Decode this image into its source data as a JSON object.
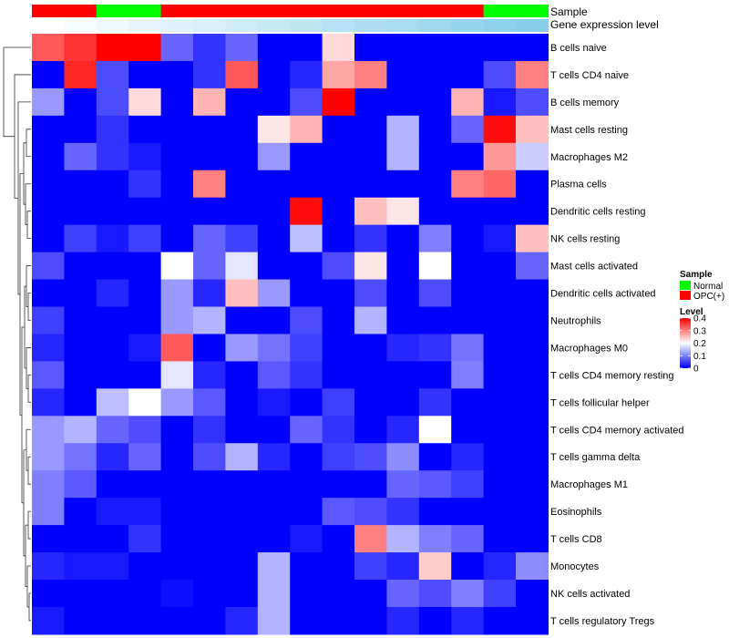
{
  "chart_data": {
    "type": "heatmap",
    "annotation_labels": [
      "Sample",
      "Gene expression level"
    ],
    "sample_groups": [
      "OPC(+)",
      "OPC(+)",
      "Normal",
      "Normal",
      "OPC(+)",
      "OPC(+)",
      "OPC(+)",
      "OPC(+)",
      "OPC(+)",
      "OPC(+)",
      "OPC(+)",
      "OPC(+)",
      "OPC(+)",
      "OPC(+)",
      "Normal",
      "Normal"
    ],
    "expression_levels": [
      0,
      1,
      2,
      3,
      4,
      5,
      6,
      7,
      8,
      9,
      10,
      11,
      12,
      13,
      14,
      15
    ],
    "rows": [
      "B cells naive",
      "T cells CD4 naive",
      "B cells memory",
      "Mast cells resting",
      "Macrophages M2",
      "Plasma cells",
      "Dendritic cells resting",
      "NK cells resting",
      "Mast cells activated",
      "Dendritic cells activated",
      "Neutrophils",
      "Macrophages M0",
      "T cells CD4 memory resting",
      "T cells follicular helper",
      "T cells CD4 memory activated",
      "T cells gamma delta",
      "Macrophages M1",
      "Eosinophils",
      "T cells CD8",
      "Monocytes",
      "NK cells activated",
      "T cells regulatory  Tregs"
    ],
    "values": [
      [
        0.33,
        0.36,
        0.4,
        0.4,
        0.08,
        0.04,
        0.08,
        0.0,
        0.0,
        0.23,
        0.0,
        0.0,
        0.0,
        0.0,
        0.0,
        0.0
      ],
      [
        0.0,
        0.37,
        0.06,
        0.0,
        0.0,
        0.04,
        0.33,
        0.0,
        0.03,
        0.27,
        0.3,
        0.0,
        0.0,
        0.0,
        0.06,
        0.3
      ],
      [
        0.12,
        0.0,
        0.06,
        0.23,
        0.0,
        0.26,
        0.0,
        0.0,
        0.06,
        0.4,
        0.0,
        0.0,
        0.0,
        0.26,
        0.02,
        0.06
      ],
      [
        0.0,
        0.0,
        0.04,
        0.0,
        0.0,
        0.0,
        0.0,
        0.22,
        0.26,
        0.0,
        0.0,
        0.14,
        0.0,
        0.08,
        0.39,
        0.25
      ],
      [
        0.0,
        0.08,
        0.04,
        0.02,
        0.0,
        0.0,
        0.0,
        0.12,
        0.0,
        0.0,
        0.0,
        0.14,
        0.0,
        0.0,
        0.28,
        0.16
      ],
      [
        0.0,
        0.0,
        0.0,
        0.04,
        0.0,
        0.3,
        0.0,
        0.0,
        0.0,
        0.0,
        0.0,
        0.0,
        0.0,
        0.3,
        0.32,
        0.0
      ],
      [
        0.0,
        0.0,
        0.0,
        0.0,
        0.0,
        0.0,
        0.0,
        0.0,
        0.39,
        0.0,
        0.25,
        0.22,
        0.0,
        0.0,
        0.0,
        0.0
      ],
      [
        0.0,
        0.05,
        0.02,
        0.05,
        0.0,
        0.08,
        0.05,
        0.0,
        0.15,
        0.0,
        0.04,
        0.0,
        0.1,
        0.0,
        0.02,
        0.25
      ],
      [
        0.06,
        0.0,
        0.0,
        0.0,
        0.2,
        0.08,
        0.18,
        0.0,
        0.0,
        0.06,
        0.22,
        0.0,
        0.2,
        0.0,
        0.0,
        0.08
      ],
      [
        0.0,
        0.0,
        0.03,
        0.0,
        0.12,
        0.03,
        0.25,
        0.12,
        0.0,
        0.0,
        0.06,
        0.0,
        0.06,
        0.0,
        0.0,
        0.0
      ],
      [
        0.05,
        0.0,
        0.0,
        0.0,
        0.12,
        0.14,
        0.0,
        0.0,
        0.06,
        0.0,
        0.14,
        0.0,
        0.0,
        0.0,
        0.0,
        0.0
      ],
      [
        0.03,
        0.0,
        0.0,
        0.02,
        0.33,
        0.0,
        0.12,
        0.09,
        0.05,
        0.0,
        0.0,
        0.03,
        0.04,
        0.09,
        0.0,
        0.0
      ],
      [
        0.07,
        0.0,
        0.0,
        0.0,
        0.18,
        0.03,
        0.0,
        0.07,
        0.04,
        0.0,
        0.0,
        0.0,
        0.0,
        0.1,
        0.0,
        0.0
      ],
      [
        0.03,
        0.0,
        0.15,
        0.2,
        0.12,
        0.07,
        0.0,
        0.02,
        0.0,
        0.05,
        0.0,
        0.0,
        0.04,
        0.0,
        0.0,
        0.0
      ],
      [
        0.12,
        0.14,
        0.08,
        0.06,
        0.0,
        0.04,
        0.0,
        0.0,
        0.08,
        0.04,
        0.0,
        0.03,
        0.2,
        0.0,
        0.0,
        0.0
      ],
      [
        0.12,
        0.09,
        0.03,
        0.08,
        0.0,
        0.06,
        0.14,
        0.03,
        0.0,
        0.05,
        0.06,
        0.11,
        0.0,
        0.03,
        0.0,
        0.0
      ],
      [
        0.1,
        0.07,
        0.0,
        0.0,
        0.0,
        0.0,
        0.0,
        0.0,
        0.0,
        0.0,
        0.0,
        0.08,
        0.07,
        0.05,
        0.0,
        0.0
      ],
      [
        0.1,
        0.0,
        0.02,
        0.02,
        0.0,
        0.0,
        0.0,
        0.0,
        0.0,
        0.07,
        0.06,
        0.04,
        0.0,
        0.0,
        0.0,
        0.0
      ],
      [
        0.0,
        0.0,
        0.0,
        0.04,
        0.0,
        0.0,
        0.0,
        0.0,
        0.02,
        0.0,
        0.3,
        0.14,
        0.1,
        0.08,
        0.0,
        0.0
      ],
      [
        0.03,
        0.02,
        0.02,
        0.0,
        0.0,
        0.0,
        0.0,
        0.14,
        0.0,
        0.0,
        0.05,
        0.03,
        0.24,
        0.0,
        0.03,
        0.11
      ],
      [
        0.0,
        0.0,
        0.0,
        0.0,
        0.01,
        0.0,
        0.0,
        0.14,
        0.0,
        0.0,
        0.0,
        0.08,
        0.06,
        0.1,
        0.05,
        0.0
      ],
      [
        0.02,
        0.0,
        0.0,
        0.0,
        0.0,
        0.0,
        0.03,
        0.14,
        0.0,
        0.0,
        0.0,
        0.03,
        0.0,
        0.03,
        0.0,
        0.0
      ]
    ],
    "color_scale": {
      "domain": [
        0,
        0.2,
        0.4
      ],
      "colors": [
        "#0000ff",
        "#ffffff",
        "#ff0000"
      ]
    },
    "legend_sample": {
      "title": "Sample",
      "items": [
        {
          "label": "Normal",
          "color": "#00ff00"
        },
        {
          "label": "OPC(+)",
          "color": "#ff0000"
        }
      ]
    },
    "legend_level": {
      "title": "Level",
      "ticks": [
        "0.4",
        "0.3",
        "0.2",
        "0.1",
        "0"
      ],
      "tick_values": [
        0.4,
        0.3,
        0.2,
        0.1,
        0
      ]
    },
    "level_annotation_colors": [
      "#ffffff",
      "#87ceeb"
    ],
    "row_dendrogram": true
  }
}
